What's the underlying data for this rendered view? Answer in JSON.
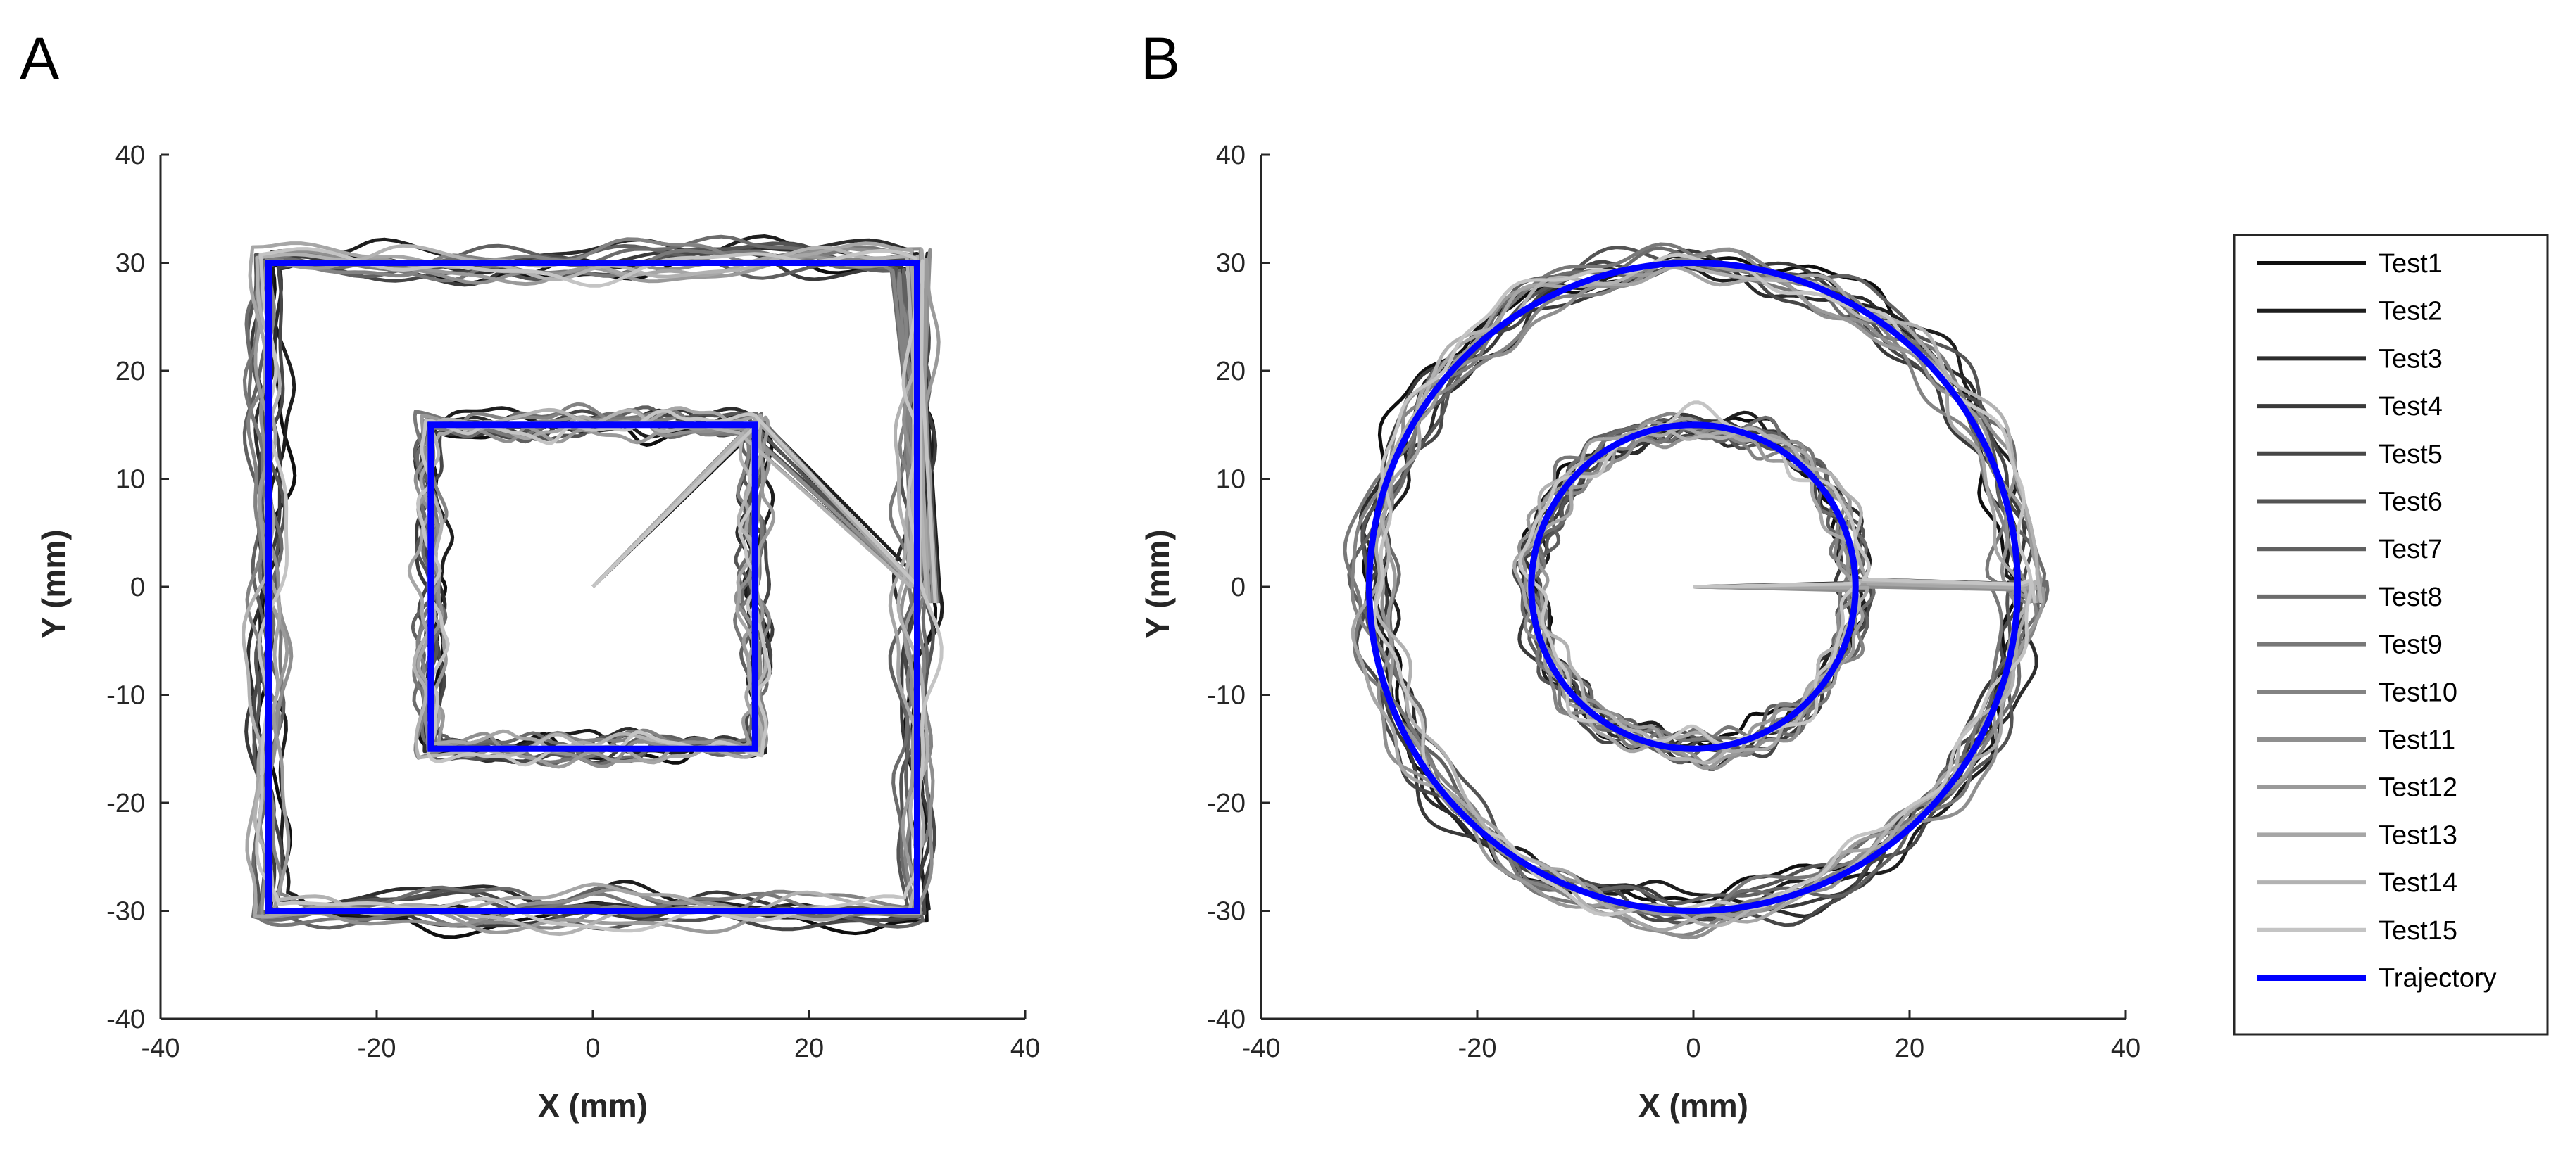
{
  "figure": {
    "panels": [
      {
        "letter": "A",
        "xlabel": "X (mm)",
        "ylabel": "Y (mm)"
      },
      {
        "letter": "B",
        "xlabel": "X (mm)",
        "ylabel": "Y (mm)"
      }
    ],
    "tick_labels": [
      "-40",
      "-30",
      "-20",
      "-10",
      "0",
      "10",
      "20",
      "30",
      "40"
    ],
    "x_tick_labels": [
      "-40",
      "-20",
      "0",
      "20",
      "40"
    ]
  },
  "chart_data": [
    {
      "type": "line",
      "panel": "A",
      "title": "",
      "xlabel": "X (mm)",
      "ylabel": "Y (mm)",
      "xlim": [
        -40,
        40
      ],
      "ylim": [
        -40,
        40
      ],
      "xticks": [
        -40,
        -20,
        0,
        20,
        40
      ],
      "yticks": [
        -40,
        -30,
        -20,
        -10,
        0,
        10,
        20,
        30,
        40
      ],
      "grid": false,
      "reference": {
        "name": "Trajectory",
        "color": "#0000ff",
        "shapes": [
          {
            "kind": "square",
            "center": [
              0,
              0
            ],
            "half_size": 30
          },
          {
            "kind": "square",
            "center": [
              0,
              0
            ],
            "half_size": 15
          }
        ],
        "connector": [
          [
            0,
            0
          ],
          [
            30,
            0
          ]
        ]
      },
      "series_note": "15 test traces track the reference within about ±3 mm"
    },
    {
      "type": "line",
      "panel": "B",
      "title": "",
      "xlabel": "X (mm)",
      "ylabel": "Y (mm)",
      "xlim": [
        -40,
        40
      ],
      "ylim": [
        -40,
        40
      ],
      "xticks": [
        -40,
        -20,
        0,
        20,
        40
      ],
      "yticks": [
        -40,
        -30,
        -20,
        -10,
        0,
        10,
        20,
        30,
        40
      ],
      "grid": false,
      "reference": {
        "name": "Trajectory",
        "color": "#0000ff",
        "shapes": [
          {
            "kind": "circle",
            "center": [
              0,
              0
            ],
            "radius": 30
          },
          {
            "kind": "circle",
            "center": [
              0,
              0
            ],
            "radius": 15
          }
        ],
        "connector": [
          [
            0,
            0
          ],
          [
            30,
            0
          ]
        ]
      },
      "series_note": "15 test traces track the reference within about ±3 mm"
    }
  ],
  "legend": {
    "placement": "right",
    "entries": [
      {
        "name": "Test1",
        "color": "#0f0f0f"
      },
      {
        "name": "Test2",
        "color": "#1e1e1e"
      },
      {
        "name": "Test3",
        "color": "#2c2c2c"
      },
      {
        "name": "Test4",
        "color": "#3a3a3a"
      },
      {
        "name": "Test5",
        "color": "#474747"
      },
      {
        "name": "Test6",
        "color": "#545454"
      },
      {
        "name": "Test7",
        "color": "#606060"
      },
      {
        "name": "Test8",
        "color": "#6c6c6c"
      },
      {
        "name": "Test9",
        "color": "#787878"
      },
      {
        "name": "Test10",
        "color": "#838383"
      },
      {
        "name": "Test11",
        "color": "#8f8f8f"
      },
      {
        "name": "Test12",
        "color": "#9a9a9a"
      },
      {
        "name": "Test13",
        "color": "#a6a6a6"
      },
      {
        "name": "Test14",
        "color": "#b2b2b2"
      },
      {
        "name": "Test15",
        "color": "#c4c4c4"
      },
      {
        "name": "Trajectory",
        "color": "#0000ff"
      }
    ]
  }
}
